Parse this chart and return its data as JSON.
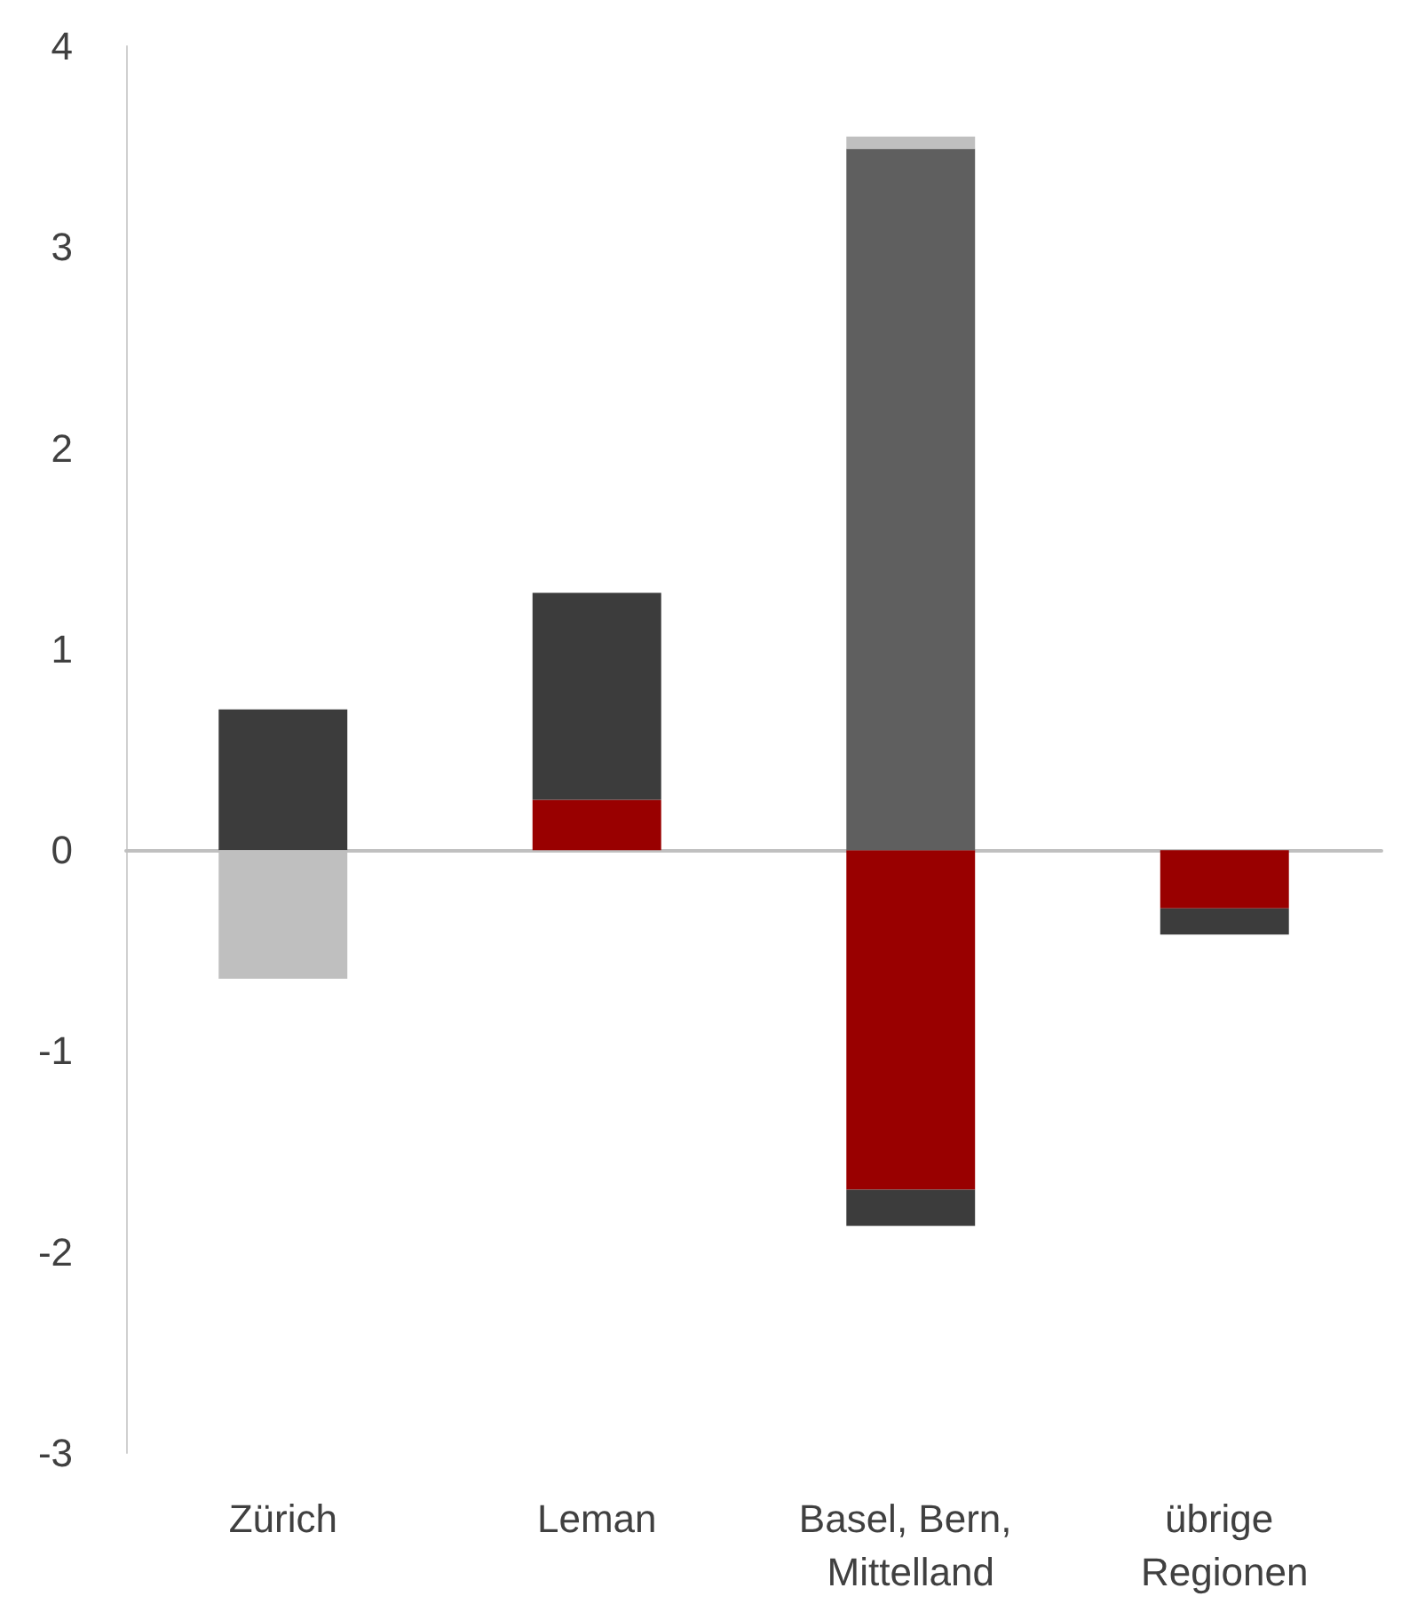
{
  "chart_data": {
    "type": "bar",
    "stacked": true,
    "categories": [
      "Zürich",
      "Leman",
      "Basel, Bern, Mittelland",
      "übrige Regionen"
    ],
    "series": [
      {
        "color": "#990000",
        "values": [
          null,
          0.25,
          -1.69,
          -0.29
        ]
      },
      {
        "color": "#3c3c3c",
        "values": [
          0.7,
          1.03,
          -0.18,
          -0.13
        ]
      },
      {
        "color": "#5f5f5f",
        "values": [
          null,
          null,
          3.49,
          null
        ]
      },
      {
        "color": "#bfbfbf",
        "values": [
          -0.64,
          null,
          0.06,
          null
        ]
      }
    ],
    "ylim": [
      -3,
      4
    ],
    "yticks": [
      -3,
      -2,
      -1,
      0,
      1,
      2,
      3,
      4
    ]
  }
}
